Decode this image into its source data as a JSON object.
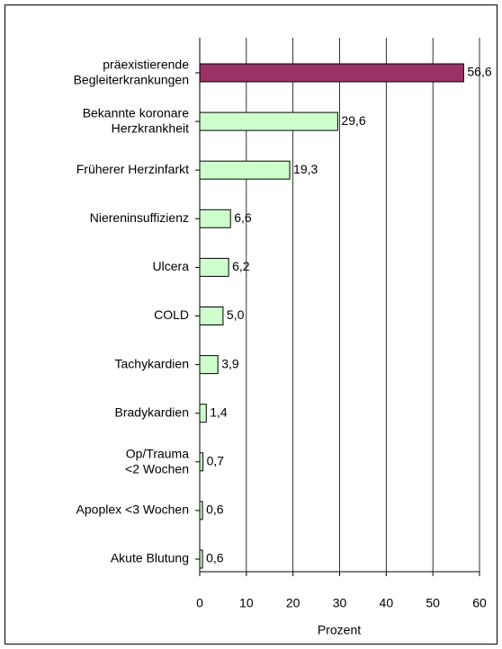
{
  "chart_data": {
    "type": "bar",
    "orientation": "horizontal",
    "categories": [
      "präexistierende\nBegleiterkrankungen",
      "Bekannte koronare\nHerzkrankheit",
      "Früherer Herzinfarkt",
      "Niereninsuffizienz",
      "Ulcera",
      "COLD",
      "Tachykardien",
      "Bradykardien",
      "Op/Trauma\n<2 Wochen",
      "Apoplex <3 Wochen",
      "Akute Blutung"
    ],
    "values": [
      56.6,
      29.6,
      19.3,
      6.6,
      6.2,
      5.0,
      3.9,
      1.4,
      0.7,
      0.6,
      0.6
    ],
    "value_labels": [
      "56,6",
      "29,6",
      "19,3",
      "6,6",
      "6,2",
      "5,0",
      "3,9",
      "1,4",
      "0,7",
      "0,6",
      "0,6"
    ],
    "colors": [
      "#993366",
      "#ccffcc",
      "#ccffcc",
      "#ccffcc",
      "#ccffcc",
      "#ccffcc",
      "#ccffcc",
      "#ccffcc",
      "#ccffcc",
      "#ccffcc",
      "#ccffcc"
    ],
    "xlabel": "Prozent",
    "xlim": [
      0,
      60
    ],
    "xticks": [
      0,
      10,
      20,
      30,
      40,
      50,
      60
    ],
    "grid": true
  }
}
